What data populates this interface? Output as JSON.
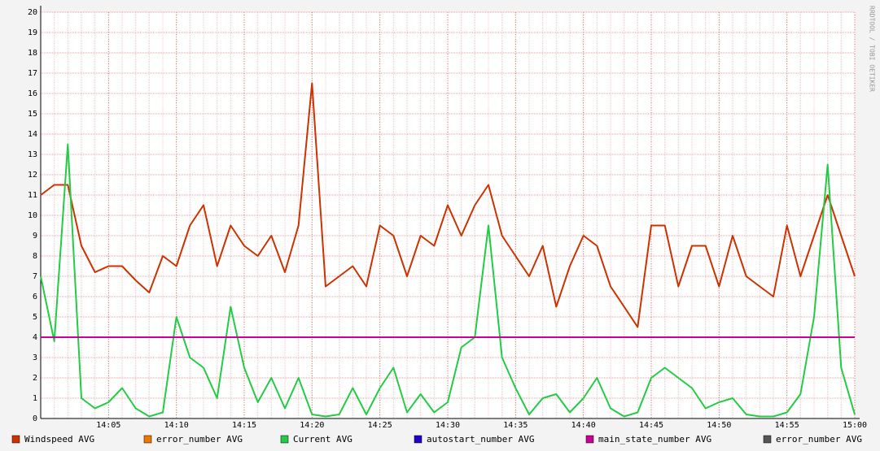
{
  "chart_data": {
    "type": "line",
    "watermark": "RRDTOOL / TOBI OETIKER",
    "x": [
      0,
      1,
      2,
      3,
      4,
      5,
      6,
      7,
      8,
      9,
      10,
      11,
      12,
      13,
      14,
      15,
      16,
      17,
      18,
      19,
      20,
      21,
      22,
      23,
      24,
      25,
      26,
      27,
      28,
      29,
      30,
      31,
      32,
      33,
      34,
      35,
      36,
      37,
      38,
      39,
      40,
      41,
      42,
      43,
      44,
      45,
      46,
      47,
      48,
      49,
      50,
      51,
      52,
      53,
      54,
      55,
      56,
      57,
      58,
      59,
      60
    ],
    "xlim": [
      0,
      60
    ],
    "xticks": [
      {
        "value": 5,
        "label": "14:05"
      },
      {
        "value": 10,
        "label": "14:10"
      },
      {
        "value": 15,
        "label": "14:15"
      },
      {
        "value": 20,
        "label": "14:20"
      },
      {
        "value": 25,
        "label": "14:25"
      },
      {
        "value": 30,
        "label": "14:30"
      },
      {
        "value": 35,
        "label": "14:35"
      },
      {
        "value": 40,
        "label": "14:40"
      },
      {
        "value": 45,
        "label": "14:45"
      },
      {
        "value": 50,
        "label": "14:50"
      },
      {
        "value": 55,
        "label": "14:55"
      },
      {
        "value": 60,
        "label": "15:00"
      }
    ],
    "ylim": [
      0,
      20
    ],
    "yticks": [
      0,
      1,
      2,
      3,
      4,
      5,
      6,
      7,
      8,
      9,
      10,
      11,
      12,
      13,
      14,
      15,
      16,
      17,
      18,
      19,
      20
    ],
    "grid": true,
    "series": [
      {
        "name": "Windspeed AVG",
        "color": "#cc3300",
        "values": [
          11,
          11.5,
          11.5,
          8.5,
          7.2,
          7.5,
          7.5,
          6.8,
          6.2,
          8,
          7.5,
          9.5,
          10.5,
          7.5,
          9.5,
          8.5,
          8,
          9,
          7.2,
          9.5,
          16.5,
          6.5,
          7,
          7.5,
          6.5,
          9.5,
          9,
          7,
          9,
          8.5,
          10.5,
          9,
          10.5,
          11.5,
          9,
          8,
          7,
          8.5,
          5.5,
          7.5,
          9,
          8.5,
          6.5,
          5.5,
          4.5,
          9.5,
          9.5,
          6.5,
          8.5,
          8.5,
          6.5,
          9,
          7,
          6.5,
          6,
          9.5,
          7,
          9,
          11,
          9,
          7
        ]
      },
      {
        "name": "error_number AVG",
        "color": "#ee7700",
        "values": [
          null,
          null,
          null,
          null,
          null,
          null,
          null,
          null,
          null,
          null,
          null,
          null,
          null,
          null,
          null,
          null,
          null,
          null,
          null,
          null,
          null,
          null,
          null,
          null,
          null,
          null,
          null,
          null,
          null,
          null,
          null,
          null,
          null,
          null,
          null,
          null,
          null,
          null,
          null,
          null,
          null,
          null,
          null,
          null,
          null,
          null,
          null,
          null,
          null,
          null,
          null,
          null,
          null,
          null,
          null,
          null,
          null,
          null,
          null,
          null,
          null
        ]
      },
      {
        "name": "Current AVG",
        "color": "#22cc44",
        "values": [
          7,
          3.8,
          13.5,
          1,
          0.5,
          0.8,
          1.5,
          0.5,
          0.1,
          0.3,
          5,
          3,
          2.5,
          1,
          5.5,
          2.5,
          0.8,
          2,
          0.5,
          2,
          0.2,
          0.1,
          0.2,
          1.5,
          0.2,
          1.5,
          2.5,
          0.3,
          1.2,
          0.3,
          0.8,
          3.5,
          4,
          9.5,
          3,
          1.5,
          0.2,
          1,
          1.2,
          0.3,
          1,
          2,
          0.5,
          0.1,
          0.3,
          2,
          2.5,
          2,
          1.5,
          0.5,
          0.8,
          1,
          0.2,
          0.1,
          0.1,
          0.3,
          1.2,
          5,
          12.5,
          2.5,
          0.2
        ]
      },
      {
        "name": "autostart_number AVG",
        "color": "#2200cc",
        "values": [
          null,
          null,
          null,
          null,
          null,
          null,
          null,
          null,
          null,
          null,
          null,
          null,
          null,
          null,
          null,
          null,
          null,
          null,
          null,
          null,
          null,
          null,
          null,
          null,
          null,
          null,
          null,
          null,
          null,
          null,
          null,
          null,
          null,
          null,
          null,
          null,
          null,
          null,
          null,
          null,
          null,
          null,
          null,
          null,
          null,
          null,
          null,
          null,
          null,
          null,
          null,
          null,
          null,
          null,
          null,
          null,
          null,
          null,
          null,
          null,
          null
        ]
      },
      {
        "name": "main_state_number AVG",
        "color": "#cc0099",
        "values": [
          4,
          4,
          4,
          4,
          4,
          4,
          4,
          4,
          4,
          4,
          4,
          4,
          4,
          4,
          4,
          4,
          4,
          4,
          4,
          4,
          4,
          4,
          4,
          4,
          4,
          4,
          4,
          4,
          4,
          4,
          4,
          4,
          4,
          4,
          4,
          4,
          4,
          4,
          4,
          4,
          4,
          4,
          4,
          4,
          4,
          4,
          4,
          4,
          4,
          4,
          4,
          4,
          4,
          4,
          4,
          4,
          4,
          4,
          4,
          4,
          4
        ]
      },
      {
        "name": "error_number AVG",
        "color": "#555555",
        "values": [
          null,
          null,
          null,
          null,
          null,
          null,
          null,
          null,
          null,
          null,
          null,
          null,
          null,
          null,
          null,
          null,
          null,
          null,
          null,
          null,
          null,
          null,
          null,
          null,
          null,
          null,
          null,
          null,
          null,
          null,
          null,
          null,
          null,
          null,
          null,
          null,
          null,
          null,
          null,
          null,
          null,
          null,
          null,
          null,
          null,
          null,
          null,
          null,
          null,
          null,
          null,
          null,
          null,
          null,
          null,
          null,
          null,
          null,
          null,
          null,
          null
        ]
      }
    ]
  }
}
